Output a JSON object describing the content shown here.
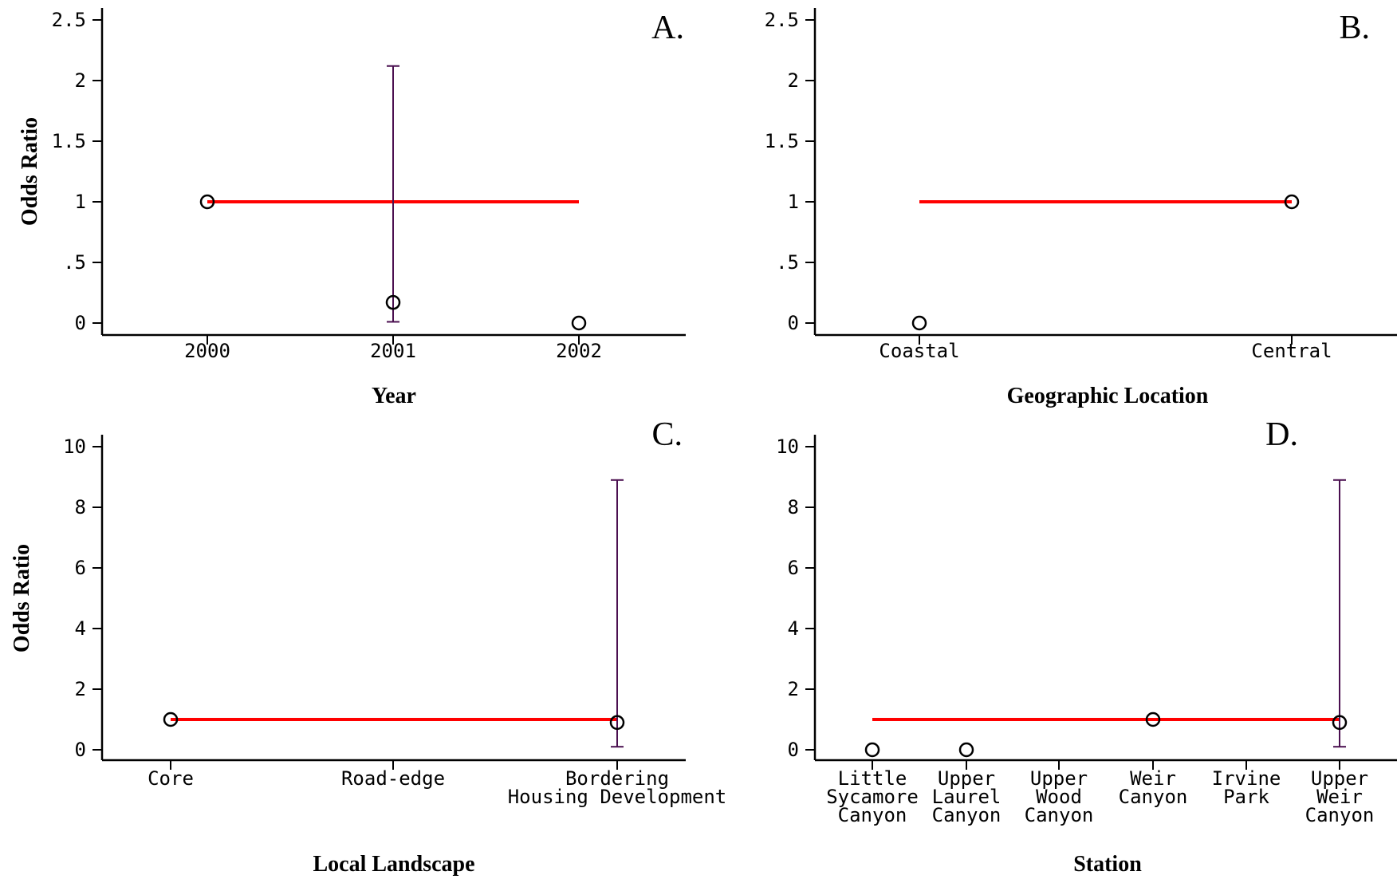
{
  "chart_data": [
    {
      "type": "scatter",
      "panel_label": "A.",
      "title": "",
      "xlabel": "Year",
      "ylabel": "Odds Ratio",
      "categories": [
        "2000",
        "2001",
        "2002"
      ],
      "ylim": [
        0,
        2.5
      ],
      "yticks": [
        "0",
        ".5",
        "1",
        "1.5",
        "2",
        "2.5"
      ],
      "ytick_values": [
        0,
        0.5,
        1,
        1.5,
        2,
        2.5
      ],
      "reference_line": {
        "y": 1,
        "from": "2000",
        "to": "2002",
        "color": "#ff0000"
      },
      "points": [
        {
          "x": "2000",
          "y": 1
        },
        {
          "x": "2001",
          "y": 0.17,
          "ci_low": 0.01,
          "ci_high": 2.12
        },
        {
          "x": "2002",
          "y": 0
        }
      ]
    },
    {
      "type": "scatter",
      "panel_label": "B.",
      "title": "",
      "xlabel": "Geographic Location",
      "ylabel": "",
      "categories": [
        "Coastal",
        "Central"
      ],
      "ylim": [
        0,
        2.5
      ],
      "yticks": [
        "0",
        ".5",
        "1",
        "1.5",
        "2",
        "2.5"
      ],
      "ytick_values": [
        0,
        0.5,
        1,
        1.5,
        2,
        2.5
      ],
      "reference_line": {
        "y": 1,
        "from": "Coastal",
        "to": "Central",
        "color": "#ff0000"
      },
      "points": [
        {
          "x": "Coastal",
          "y": 0
        },
        {
          "x": "Central",
          "y": 1
        }
      ]
    },
    {
      "type": "scatter",
      "panel_label": "C.",
      "title": "",
      "xlabel": "Local Landscape",
      "ylabel": "Odds Ratio",
      "categories": [
        "Core",
        "Road-edge",
        "Bordering\nHousing Development"
      ],
      "ylim": [
        0,
        10
      ],
      "yticks": [
        "0",
        "2",
        "4",
        "6",
        "8",
        "10"
      ],
      "ytick_values": [
        0,
        2,
        4,
        6,
        8,
        10
      ],
      "reference_line": {
        "y": 1,
        "from": "Core",
        "to": "Bordering\nHousing Development",
        "color": "#ff0000"
      },
      "points": [
        {
          "x": "Core",
          "y": 1
        },
        {
          "x": "Bordering\nHousing Development",
          "y": 0.9,
          "ci_low": 0.1,
          "ci_high": 8.9
        }
      ]
    },
    {
      "type": "scatter",
      "panel_label": "D.",
      "title": "",
      "xlabel": "Station",
      "ylabel": "",
      "categories": [
        "Little\nSycamore\nCanyon",
        "Upper\nLaurel\nCanyon",
        "Upper\nWood\nCanyon",
        "Weir\nCanyon",
        "Irvine\nPark",
        "Upper\nWeir\nCanyon"
      ],
      "ylim": [
        0,
        10
      ],
      "yticks": [
        "0",
        "2",
        "4",
        "6",
        "8",
        "10"
      ],
      "ytick_values": [
        0,
        2,
        4,
        6,
        8,
        10
      ],
      "reference_line": {
        "y": 1,
        "from": "Little\nSycamore\nCanyon",
        "to": "Upper\nWeir\nCanyon",
        "color": "#ff0000"
      },
      "points": [
        {
          "x": "Little\nSycamore\nCanyon",
          "y": 0
        },
        {
          "x": "Upper\nLaurel\nCanyon",
          "y": 0
        },
        {
          "x": "Weir\nCanyon",
          "y": 1
        },
        {
          "x": "Upper\nWeir\nCanyon",
          "y": 0.9,
          "ci_low": 0.1,
          "ci_high": 8.9
        }
      ]
    }
  ],
  "colors": {
    "reference_line": "#ff0000",
    "error_bar": "#4b1050",
    "marker": "#000000",
    "axis": "#000000"
  }
}
